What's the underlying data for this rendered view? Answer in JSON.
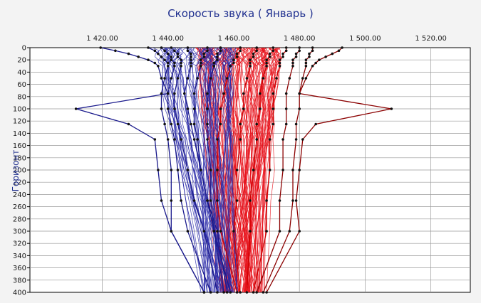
{
  "chart_data": {
    "type": "line",
    "title": "Скорость звука    ( Январь )",
    "ylabel": "Горизонт",
    "xlabel": "",
    "xlim": [
      1398,
      1532
    ],
    "ylim": [
      0,
      400
    ],
    "y_reversed": true,
    "x_ticks": [
      1420,
      1440,
      1460,
      1480,
      1500,
      1520
    ],
    "x_tick_labels": [
      "1 420.00",
      "1 440.00",
      "1 460.00",
      "1 480.00",
      "1 500.00",
      "1 520.00"
    ],
    "y_ticks": [
      0,
      20,
      40,
      60,
      80,
      100,
      120,
      140,
      160,
      180,
      200,
      220,
      240,
      260,
      280,
      300,
      320,
      340,
      360,
      380,
      400
    ],
    "y_tick_labels": [
      "0",
      "20",
      "40",
      "60",
      "80",
      "100",
      "120",
      "140",
      "160",
      "180",
      "200",
      "220",
      "240",
      "260",
      "280",
      "300",
      "320",
      "340",
      "360",
      "380",
      "400"
    ],
    "grid": true,
    "colors": {
      "blue": "#1a1a8c",
      "red": "#cc0000",
      "dark_red": "#8b0000",
      "fan_red": "#e8101a",
      "fan_blue": "#2a2aa8",
      "grid": "#9a9a9a"
    },
    "depths": [
      0,
      5,
      10,
      15,
      20,
      25,
      30,
      50,
      75,
      100,
      125,
      150,
      200,
      250,
      300,
      400
    ],
    "series": [
      {
        "color": "blue",
        "values": [
          1419.5,
          1424,
          1428,
          1431,
          1434,
          1436,
          1437,
          1438,
          1440,
          1412,
          1428,
          1436,
          1437,
          1438,
          1441,
          1451
        ]
      },
      {
        "color": "blue",
        "values": [
          1434,
          1436,
          1437,
          1438,
          1439,
          1440,
          1440,
          1439,
          1438,
          1438,
          1439,
          1440,
          1441,
          1441,
          1441,
          1451
        ]
      },
      {
        "color": "blue",
        "values": [
          1438,
          1439,
          1440,
          1441,
          1441,
          1442,
          1442,
          1441,
          1440,
          1440,
          1441,
          1442,
          1443,
          1444,
          1446,
          1453
        ]
      },
      {
        "color": "blue",
        "values": [
          1441,
          1442,
          1443,
          1443,
          1444,
          1444,
          1444,
          1443,
          1442,
          1442,
          1443,
          1444,
          1446,
          1448,
          1451,
          1455
        ]
      },
      {
        "color": "blue",
        "values": [
          1446,
          1446,
          1447,
          1447,
          1447,
          1447,
          1447,
          1446,
          1445,
          1446,
          1447,
          1448,
          1450,
          1452,
          1455,
          1458
        ]
      },
      {
        "color": "dark_red",
        "values": [
          1493,
          1492,
          1490,
          1488,
          1486,
          1485,
          1484,
          1482,
          1480,
          1508,
          1485,
          1481,
          1480,
          1479,
          1480,
          1470
        ]
      },
      {
        "color": "dark_red",
        "values": [
          1484,
          1484,
          1483,
          1483,
          1482,
          1482,
          1482,
          1481,
          1480,
          1480,
          1479,
          1479,
          1478,
          1478,
          1477,
          1469
        ]
      },
      {
        "color": "dark_red",
        "values": [
          1480,
          1480,
          1479,
          1479,
          1478,
          1478,
          1478,
          1477,
          1476,
          1476,
          1476,
          1475,
          1475,
          1474,
          1474,
          1467
        ]
      },
      {
        "color": "red",
        "values": [
          1476,
          1476,
          1475,
          1475,
          1474,
          1474,
          1474,
          1473,
          1472,
          1472,
          1472,
          1471,
          1471,
          1470,
          1470,
          1466
        ]
      },
      {
        "color": "red",
        "values": [
          1472,
          1472,
          1471,
          1471,
          1470,
          1470,
          1470,
          1469,
          1468,
          1468,
          1467,
          1467,
          1466,
          1465,
          1465,
          1464
        ]
      },
      {
        "color": "red",
        "values": [
          1467,
          1467,
          1466,
          1466,
          1465,
          1465,
          1465,
          1464,
          1463,
          1463,
          1462,
          1462,
          1461,
          1461,
          1460,
          1462
        ]
      },
      {
        "color": "red",
        "values": [
          1462,
          1462,
          1461,
          1461,
          1460,
          1460,
          1459,
          1458,
          1457,
          1456,
          1456,
          1455,
          1455,
          1455,
          1456,
          1461
        ]
      },
      {
        "color": "blue",
        "values": [
          1452,
          1452,
          1451,
          1451,
          1450,
          1450,
          1450,
          1449,
          1448,
          1448,
          1448,
          1449,
          1450,
          1452,
          1454,
          1457
        ]
      },
      {
        "color": "blue",
        "values": [
          1456,
          1456,
          1455,
          1455,
          1455,
          1454,
          1454,
          1453,
          1452,
          1452,
          1452,
          1452,
          1453,
          1453,
          1454,
          1459
        ]
      }
    ],
    "fan": {
      "red": {
        "x0_range": [
          1449,
          1474
        ],
        "x1_range": [
          1456,
          1470
        ],
        "count": 120
      },
      "blue": {
        "x0_range": [
          1437,
          1460
        ],
        "x1_range": [
          1451,
          1463
        ],
        "count": 75
      }
    }
  }
}
